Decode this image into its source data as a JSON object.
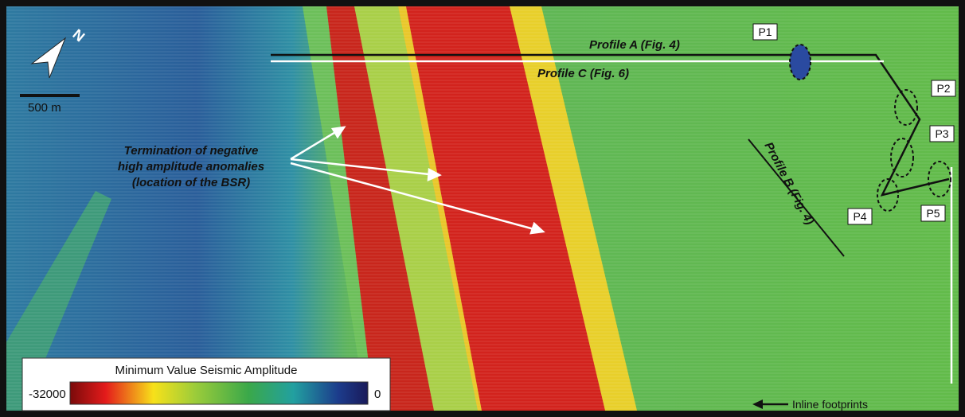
{
  "map": {
    "north_label": "N",
    "scale_label": "500 m",
    "profiles": [
      "Profile A (Fig. 4)",
      "Profile C (Fig. 6)",
      "Profile B (Fig. 4)"
    ],
    "annotation": [
      "Termination of negative",
      "high amplitude anomalies",
      "(location of the BSR)"
    ],
    "points": [
      "P1",
      "P2",
      "P3",
      "P4",
      "P5"
    ],
    "legend": {
      "title": "Minimum Value Seismic Amplitude",
      "min_label": "-32000",
      "max_label": "0"
    },
    "footnote": "Inline footprints"
  }
}
